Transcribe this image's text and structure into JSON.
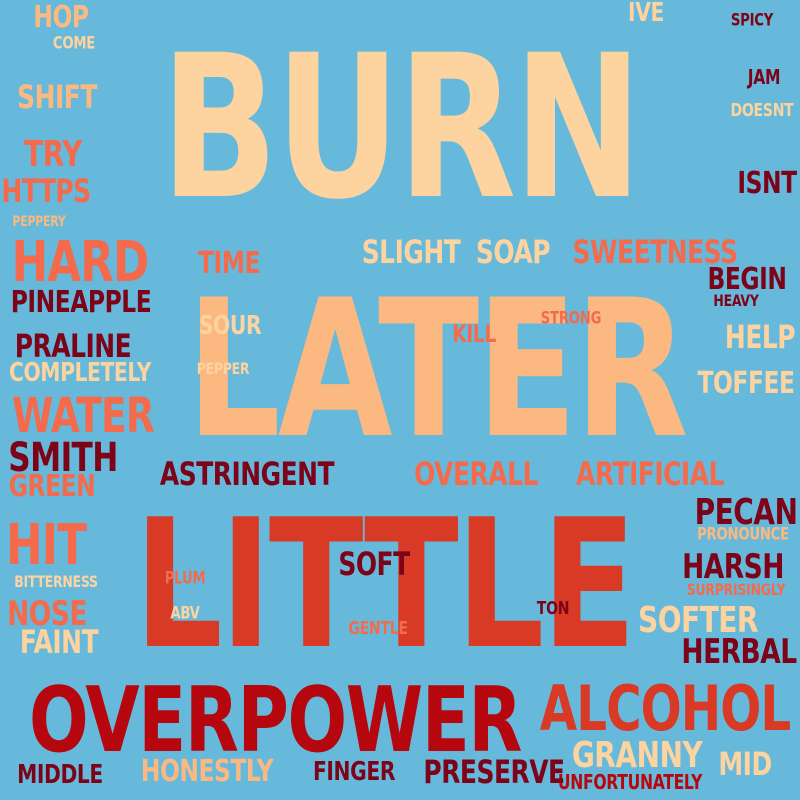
{
  "word_cloud": {
    "background": "#67b9db",
    "palette": [
      "#fdd3a0",
      "#fbb981",
      "#f36b4c",
      "#d93a25",
      "#b5070d",
      "#7d0318"
    ],
    "words": [
      {
        "text": "BURN",
        "color": "#fdd3a0"
      },
      {
        "text": "LATER",
        "color": "#fbb981"
      },
      {
        "text": "LITTLE",
        "color": "#d93a25"
      },
      {
        "text": "OVERPOWER",
        "color": "#b5070d"
      },
      {
        "text": "ALCOHOL",
        "color": "#d93a25"
      },
      {
        "text": "HARD",
        "color": "#f36b4c"
      },
      {
        "text": "WATER",
        "color": "#f36b4c"
      },
      {
        "text": "HIT",
        "color": "#f36b4c"
      },
      {
        "text": "SWEETNESS",
        "color": "#f36b4c"
      },
      {
        "text": "SLIGHT",
        "color": "#fdd3a0"
      },
      {
        "text": "SOAP",
        "color": "#fdd3a0"
      },
      {
        "text": "TIME",
        "color": "#f36b4c"
      },
      {
        "text": "PINEAPPLE",
        "color": "#7d0318"
      },
      {
        "text": "PRALINE",
        "color": "#7d0318"
      },
      {
        "text": "COMPLETELY",
        "color": "#fdd3a0"
      },
      {
        "text": "SOUR",
        "color": "#fdd3a0"
      },
      {
        "text": "PEPPER",
        "color": "#fdd3a0"
      },
      {
        "text": "KILL",
        "color": "#f36b4c"
      },
      {
        "text": "STRONG",
        "color": "#f36b4c"
      },
      {
        "text": "BEGIN",
        "color": "#7d0318"
      },
      {
        "text": "HEAVY",
        "color": "#7d0318"
      },
      {
        "text": "HELP",
        "color": "#fdd3a0"
      },
      {
        "text": "TOFFEE",
        "color": "#fdd3a0"
      },
      {
        "text": "SMITH",
        "color": "#7d0318"
      },
      {
        "text": "GREEN",
        "color": "#f36b4c"
      },
      {
        "text": "ASTRINGENT",
        "color": "#7d0318"
      },
      {
        "text": "OVERALL",
        "color": "#f36b4c"
      },
      {
        "text": "ARTIFICIAL",
        "color": "#f36b4c"
      },
      {
        "text": "PECAN",
        "color": "#7d0318"
      },
      {
        "text": "PRONOUNCE",
        "color": "#fbb981"
      },
      {
        "text": "HARSH",
        "color": "#7d0318"
      },
      {
        "text": "SURPRISINGLY",
        "color": "#f36b4c"
      },
      {
        "text": "SOFTER",
        "color": "#fdd3a0"
      },
      {
        "text": "HERBAL",
        "color": "#7d0318"
      },
      {
        "text": "SOFT",
        "color": "#7d0318"
      },
      {
        "text": "PLUM",
        "color": "#f36b4c"
      },
      {
        "text": "ABV",
        "color": "#fdd3a0"
      },
      {
        "text": "GENTLE",
        "color": "#f36b4c"
      },
      {
        "text": "TON",
        "color": "#7d0318"
      },
      {
        "text": "BITTERNESS",
        "color": "#fdd3a0"
      },
      {
        "text": "NOSE",
        "color": "#f36b4c"
      },
      {
        "text": "FAINT",
        "color": "#fdd3a0"
      },
      {
        "text": "GRANNY",
        "color": "#fdd3a0"
      },
      {
        "text": "MID",
        "color": "#fdd3a0"
      },
      {
        "text": "UNFORTUNATELY",
        "color": "#b5070d"
      },
      {
        "text": "PRESERVE",
        "color": "#7d0318"
      },
      {
        "text": "FINGER",
        "color": "#7d0318"
      },
      {
        "text": "HONESTLY",
        "color": "#fbb981"
      },
      {
        "text": "MIDDLE",
        "color": "#7d0318"
      },
      {
        "text": "HOP",
        "color": "#fbb981"
      },
      {
        "text": "COME",
        "color": "#fdd3a0"
      },
      {
        "text": "SHIFT",
        "color": "#fbb981"
      },
      {
        "text": "TRY",
        "color": "#f36b4c"
      },
      {
        "text": "HTTPS",
        "color": "#f36b4c"
      },
      {
        "text": "PEPPERY",
        "color": "#fbb981"
      },
      {
        "text": "IVE",
        "color": "#fdd3a0"
      },
      {
        "text": "SPICY",
        "color": "#7d0318"
      },
      {
        "text": "JAM",
        "color": "#7d0318"
      },
      {
        "text": "DOESNT",
        "color": "#fdd3a0"
      },
      {
        "text": "ISNT",
        "color": "#7d0318"
      }
    ]
  }
}
